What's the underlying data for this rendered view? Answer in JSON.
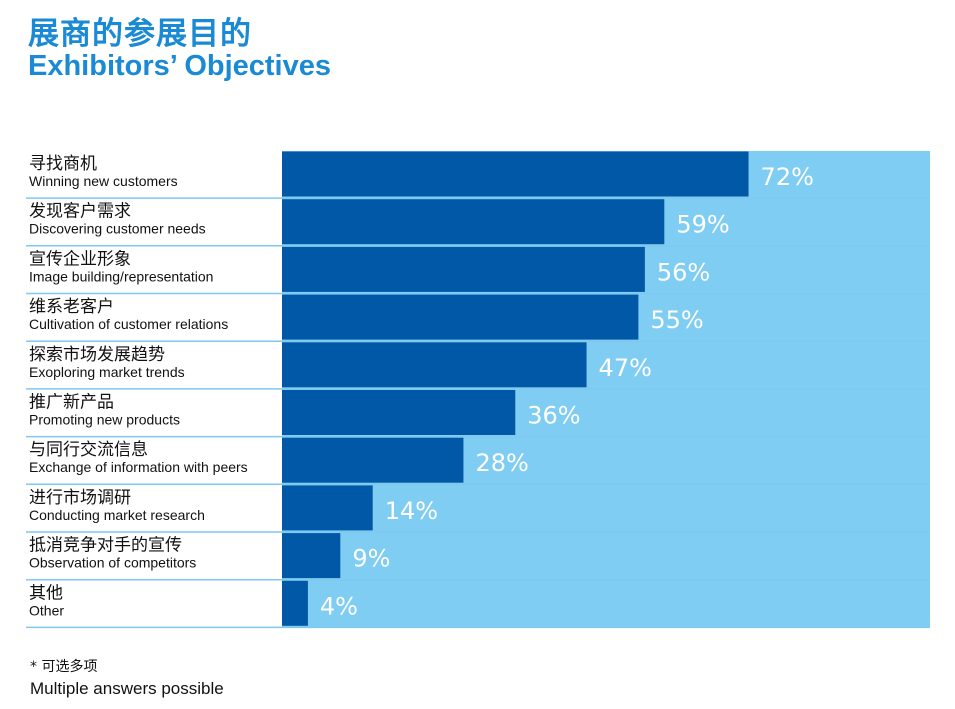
{
  "title_zh": "展商的参展目的",
  "title_en": "Exhibitors’ Objectives",
  "footnote_zh": "* 可选多项",
  "footnote_en": "Multiple answers possible",
  "colors": {
    "title": "#1a8ad4",
    "bar": "#0058a6",
    "background_panel": "#80cdf3",
    "value_label": "#ffffff",
    "separator": "#7fc8ee"
  },
  "chart_data": {
    "type": "bar",
    "orientation": "horizontal",
    "title": "展商的参展目的 Exhibitors’ Objectives",
    "categories": [
      {
        "zh": "寻找商机",
        "en": "Winning new customers"
      },
      {
        "zh": "发现客户需求",
        "en": "Discovering customer needs"
      },
      {
        "zh": "宣传企业形象",
        "en": "Image building/representation"
      },
      {
        "zh": "维系老客户",
        "en": "Cultivation of customer relations"
      },
      {
        "zh": "探索市场发展趋势",
        "en": "Exoploring market trends"
      },
      {
        "zh": "推广新产品",
        "en": "Promoting new products"
      },
      {
        "zh": "与同行交流信息",
        "en": "Exchange of information with peers"
      },
      {
        "zh": "进行市场调研",
        "en": "Conducting market research"
      },
      {
        "zh": "抵消竞争对手的宣传",
        "en": "Observation of competitors"
      },
      {
        "zh": "其他",
        "en": "Other"
      }
    ],
    "values": [
      72,
      59,
      56,
      55,
      47,
      36,
      28,
      14,
      9,
      4
    ],
    "value_labels": [
      "72%",
      "59%",
      "56%",
      "55%",
      "47%",
      "36%",
      "28%",
      "14%",
      "9%",
      "4%"
    ],
    "xlim": [
      0,
      100
    ],
    "grid": false,
    "legend": "none"
  }
}
